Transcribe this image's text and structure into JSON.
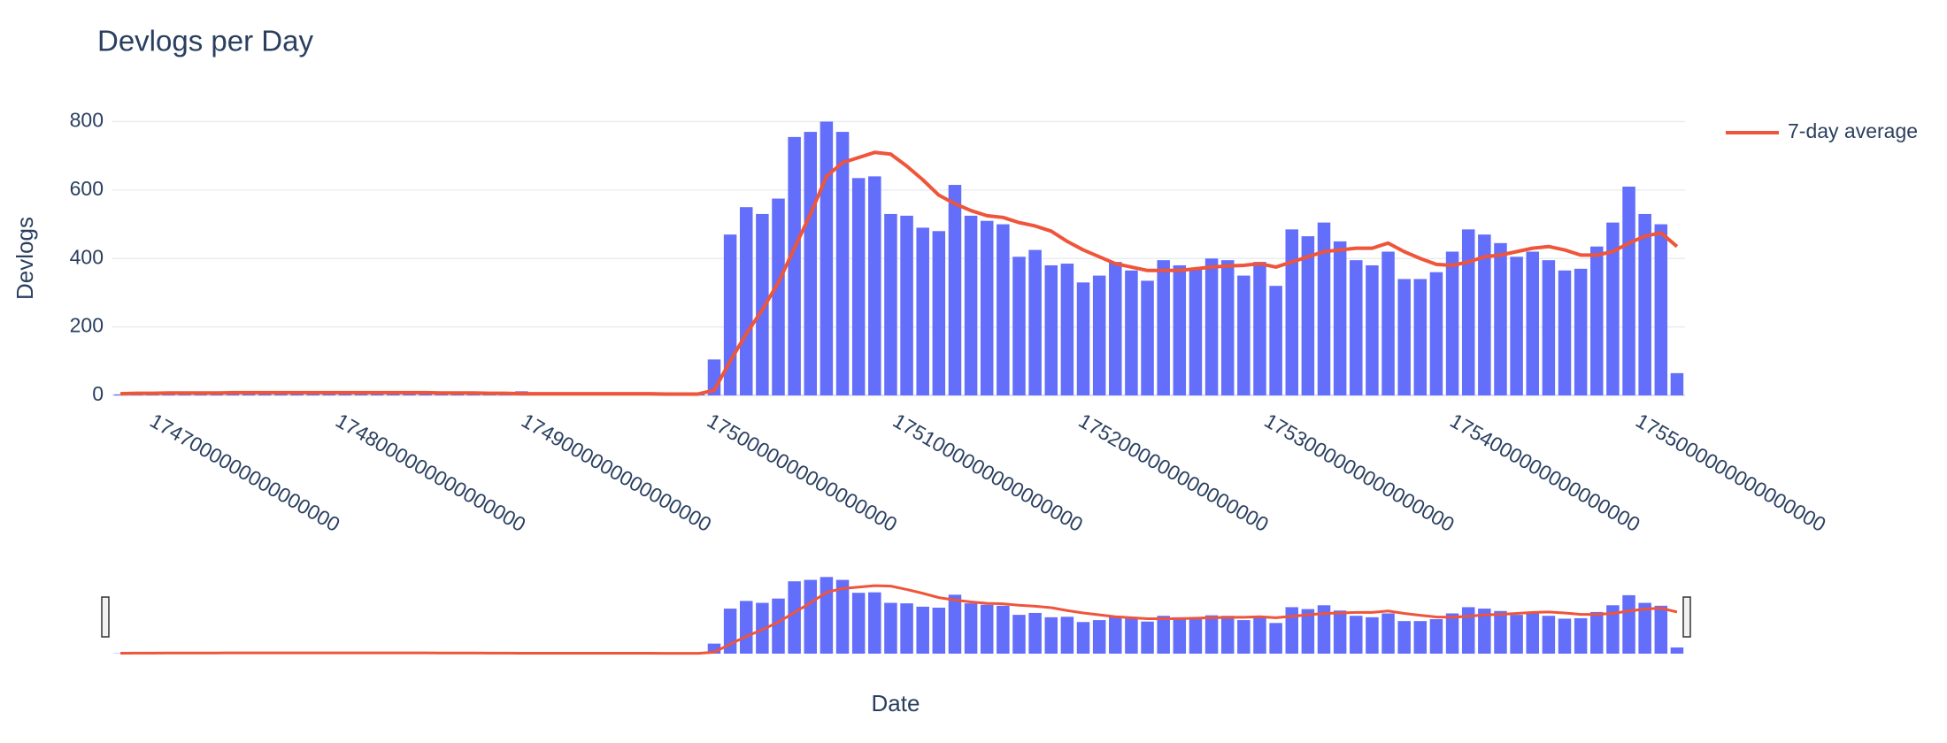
{
  "chart_data": {
    "type": "bar",
    "title": "Devlogs per Day",
    "x_label": "Date",
    "y_label": "Devlogs",
    "x": [
      1746835200000000000,
      1746921600000000000,
      1747008000000000000,
      1747094400000000000,
      1747180800000000000,
      1747267200000000000,
      1747353600000000000,
      1747440000000000000,
      1747526400000000000,
      1747612800000000000,
      1747699200000000000,
      1747785600000000000,
      1747872000000000000,
      1747958400000000000,
      1748044800000000000,
      1748131200000000000,
      1748217600000000000,
      1748304000000000000,
      1748390400000000000,
      1748476800000000000,
      1748563200000000000,
      1748649600000000000,
      1748736000000000000,
      1748822400000000000,
      1748908800000000000,
      1748995200000000000,
      1749081600000000000,
      1749168000000000000,
      1749254400000000000,
      1749340800000000000,
      1749427200000000000,
      1749513600000000000,
      1749600000000000000,
      1749686400000000000,
      1749772800000000000,
      1749859200000000000,
      1749945600000000000,
      1750032000000000000,
      1750118400000000000,
      1750204800000000000,
      1750291200000000000,
      1750377600000000000,
      1750464000000000000,
      1750550400000000000,
      1750636800000000000,
      1750723200000000000,
      1750809600000000000,
      1750896000000000000,
      1750982400000000000,
      1751068800000000000,
      1751155200000000000,
      1751241600000000000,
      1751328000000000000,
      1751414400000000000,
      1751500800000000000,
      1751587200000000000,
      1751673600000000000,
      1751760000000000000,
      1751846400000000000,
      1751932800000000000,
      1752019200000000000,
      1752105600000000000,
      1752192000000000000,
      1752278400000000000,
      1752364800000000000,
      1752451200000000000,
      1752537600000000000,
      1752624000000000000,
      1752710400000000000,
      1752796800000000000,
      1752883200000000000,
      1752969600000000000,
      1753056000000000000,
      1753142400000000000,
      1753228800000000000,
      1753315200000000000,
      1753401600000000000,
      1753488000000000000,
      1753574400000000000,
      1753660800000000000,
      1753747200000000000,
      1753833600000000000,
      1753920000000000000,
      1754006400000000000,
      1754092800000000000,
      1754179200000000000,
      1754265600000000000,
      1754352000000000000,
      1754438400000000000,
      1754524800000000000,
      1754611200000000000,
      1754697600000000000,
      1754784000000000000,
      1754870400000000000,
      1754956800000000000,
      1755043200000000000,
      1755129600000000000,
      1755216000000000000
    ],
    "values": [
      3,
      5,
      5,
      6,
      6,
      7,
      7,
      7,
      8,
      8,
      8,
      8,
      8,
      8,
      8,
      8,
      8,
      8,
      8,
      7,
      7,
      6,
      6,
      5,
      5,
      12,
      4,
      4,
      4,
      4,
      4,
      4,
      4,
      4,
      4,
      3,
      3,
      105,
      470,
      550,
      530,
      575,
      755,
      770,
      800,
      770,
      635,
      640,
      530,
      525,
      490,
      480,
      615,
      525,
      510,
      500,
      405,
      425,
      380,
      385,
      330,
      350,
      390,
      365,
      335,
      395,
      380,
      370,
      400,
      395,
      350,
      390,
      320,
      485,
      465,
      505,
      450,
      395,
      380,
      420,
      340,
      340,
      360,
      420,
      485,
      470,
      445,
      405,
      420,
      395,
      365,
      370,
      435,
      505,
      610,
      530,
      500,
      65
    ],
    "color": "#636efa",
    "series": [
      {
        "name": "7-day average",
        "type": "line",
        "color": "#ef553b",
        "values": [
          5,
          6,
          6,
          7,
          7,
          7,
          7,
          8,
          8,
          8,
          8,
          8,
          8,
          8,
          8,
          8,
          8,
          8,
          8,
          8,
          7,
          7,
          7,
          6,
          6,
          5,
          5,
          5,
          5,
          5,
          5,
          5,
          5,
          5,
          4,
          4,
          4,
          15,
          100,
          180,
          250,
          330,
          430,
          530,
          640,
          680,
          695,
          710,
          705,
          670,
          630,
          585,
          560,
          540,
          525,
          520,
          505,
          495,
          480,
          450,
          425,
          405,
          385,
          375,
          365,
          365,
          365,
          370,
          375,
          378,
          380,
          385,
          375,
          390,
          405,
          420,
          425,
          430,
          430,
          445,
          420,
          400,
          383,
          380,
          390,
          405,
          410,
          420,
          430,
          435,
          425,
          410,
          410,
          420,
          445,
          465,
          475,
          435
        ]
      }
    ],
    "xlim": [
      1746792000000000000,
      1755259200000000000
    ],
    "xticks": [
      1747000000000000000,
      1748000000000000000,
      1749000000000000000,
      1750000000000000000,
      1751000000000000000,
      1752000000000000000,
      1753000000000000000,
      1754000000000000000,
      1755000000000000000
    ],
    "ylim": [
      0,
      840
    ],
    "yticks": [
      0,
      200,
      400,
      600,
      800
    ],
    "grid": true,
    "legend": "right",
    "rangeslider": true
  }
}
